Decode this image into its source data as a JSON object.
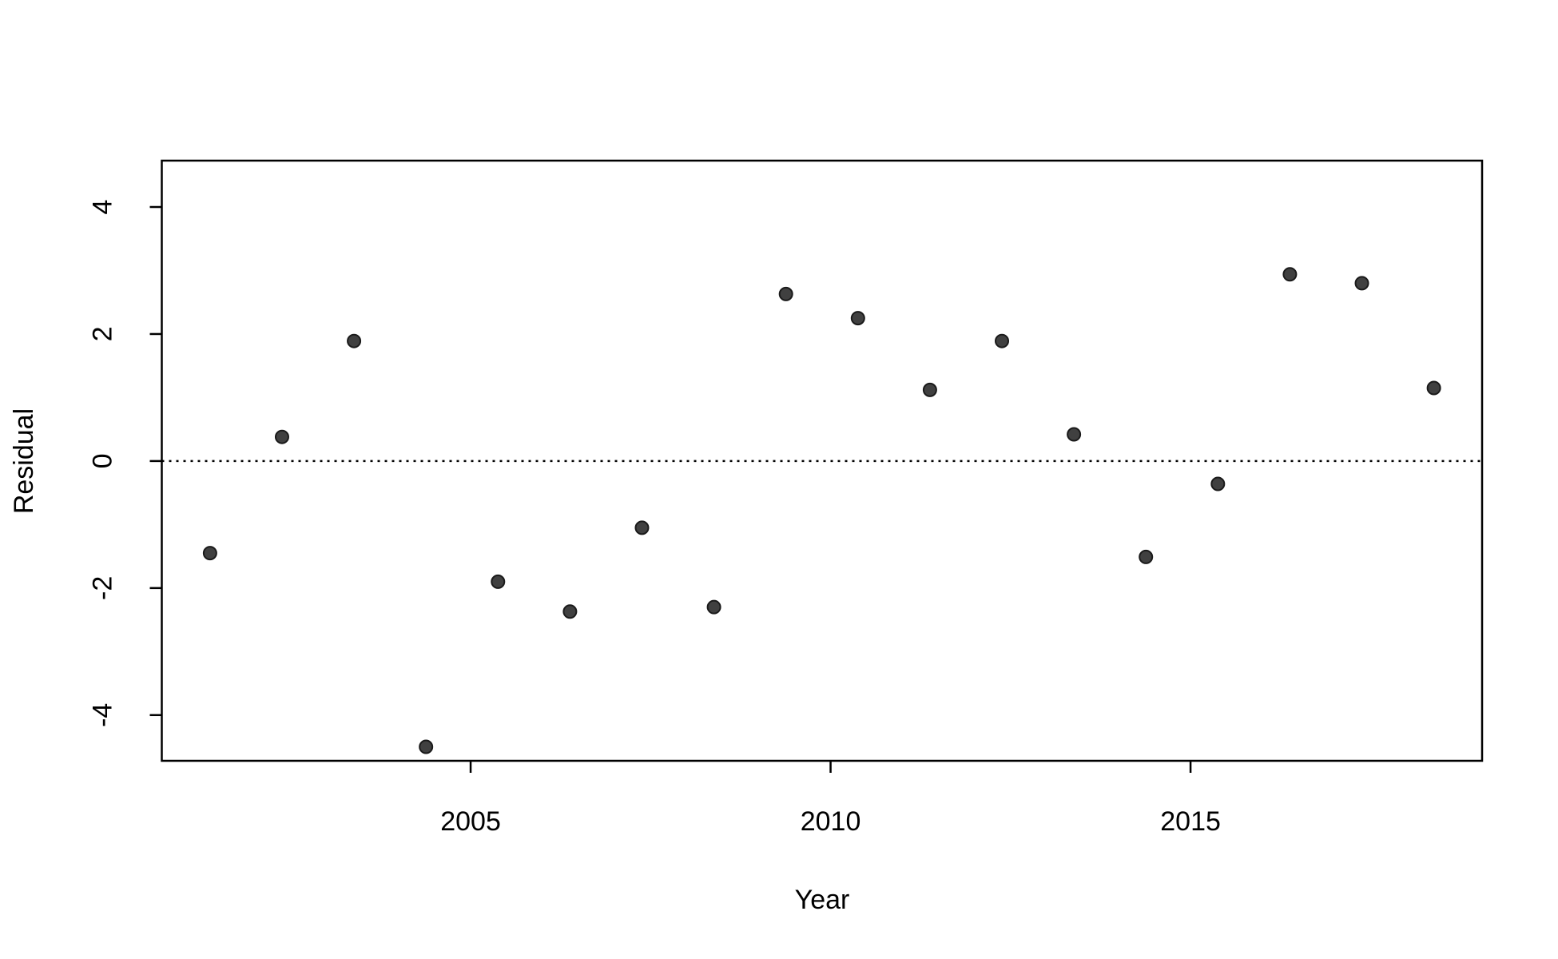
{
  "chart_data": {
    "type": "scatter",
    "x_label": "Year",
    "y_label": "Residual",
    "x": [
      2001.38,
      2002.38,
      2003.38,
      2004.38,
      2005.38,
      2006.38,
      2007.38,
      2008.38,
      2009.38,
      2010.38,
      2011.38,
      2012.38,
      2013.38,
      2014.38,
      2015.38,
      2016.38,
      2017.38,
      2018.38
    ],
    "values": [
      -1.45,
      0.38,
      1.89,
      -4.5,
      -1.9,
      -2.37,
      -1.05,
      -2.3,
      2.63,
      2.25,
      1.12,
      1.89,
      0.42,
      -1.51,
      -0.36,
      2.94,
      2.8,
      1.15
    ],
    "color": "#404040",
    "xlim": [
      2000.71,
      2019.05
    ],
    "xticks": [
      2005,
      2010,
      2015
    ],
    "ylim": [
      -4.72,
      4.73
    ],
    "yticks": [
      -4,
      -2,
      0,
      2,
      4
    ],
    "reference_line": 0
  }
}
